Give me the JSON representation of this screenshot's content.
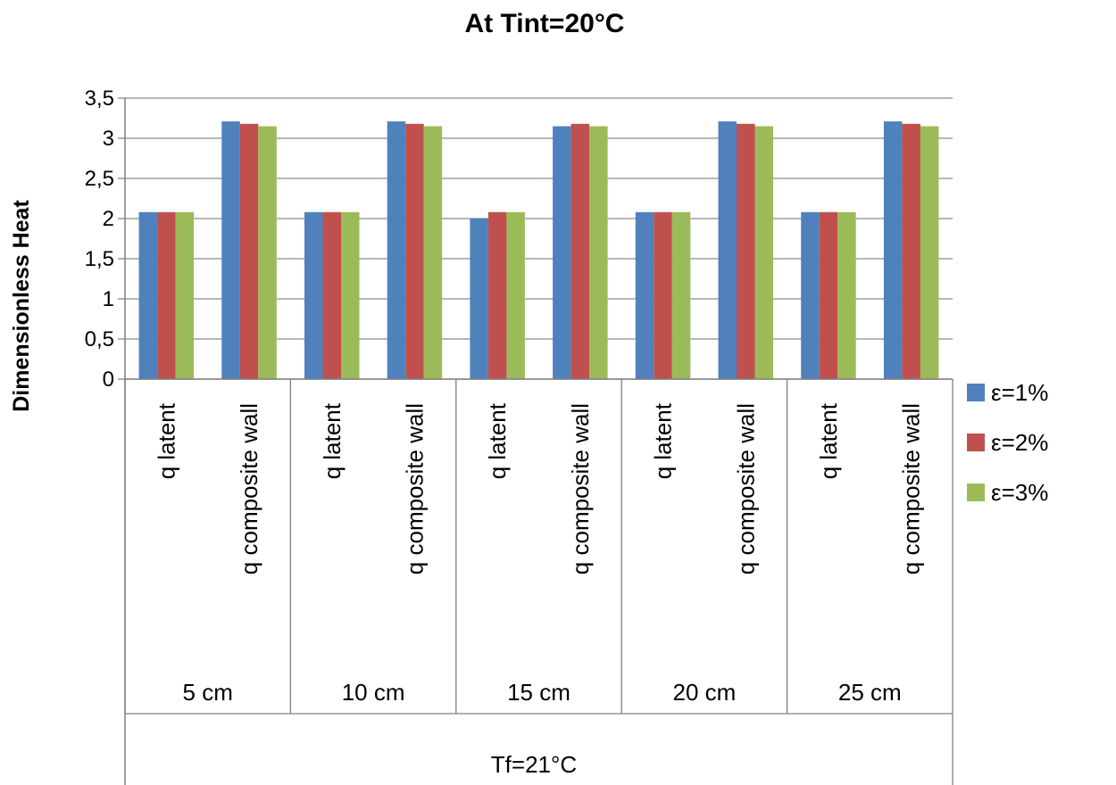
{
  "chart_data": {
    "type": "bar",
    "title": "At Tint=20°C",
    "ylabel": "Dimensionless Heat",
    "xlabel": "Tf=21°C",
    "ylim": [
      0,
      3.5
    ],
    "yticks": [
      "0",
      "0,5",
      "1",
      "1,5",
      "2",
      "2,5",
      "3",
      "3,5"
    ],
    "grid": true,
    "legend_position": "right",
    "groups": [
      "5 cm",
      "10 cm",
      "15 cm",
      "20 cm",
      "25 cm"
    ],
    "subcategories": [
      "q latent",
      "q composite wall"
    ],
    "categories": [
      "5 cm q latent",
      "5 cm q composite wall",
      "10 cm q latent",
      "10 cm q composite wall",
      "15 cm q latent",
      "15 cm q composite wall",
      "20 cm q latent",
      "20 cm q composite wall",
      "25 cm q latent",
      "25 cm q composite wall"
    ],
    "series": [
      {
        "name": "ε=1%",
        "color": "#4f81bd",
        "values": [
          2.08,
          3.21,
          2.08,
          3.21,
          2.0,
          3.15,
          2.08,
          3.21,
          2.08,
          3.21
        ]
      },
      {
        "name": "ε=2%",
        "color": "#c0504d",
        "values": [
          2.08,
          3.18,
          2.08,
          3.18,
          2.08,
          3.18,
          2.08,
          3.18,
          2.08,
          3.18
        ]
      },
      {
        "name": "ε=3%",
        "color": "#9bbb59",
        "values": [
          2.08,
          3.15,
          2.08,
          3.15,
          2.08,
          3.15,
          2.08,
          3.15,
          2.08,
          3.15
        ]
      }
    ]
  }
}
